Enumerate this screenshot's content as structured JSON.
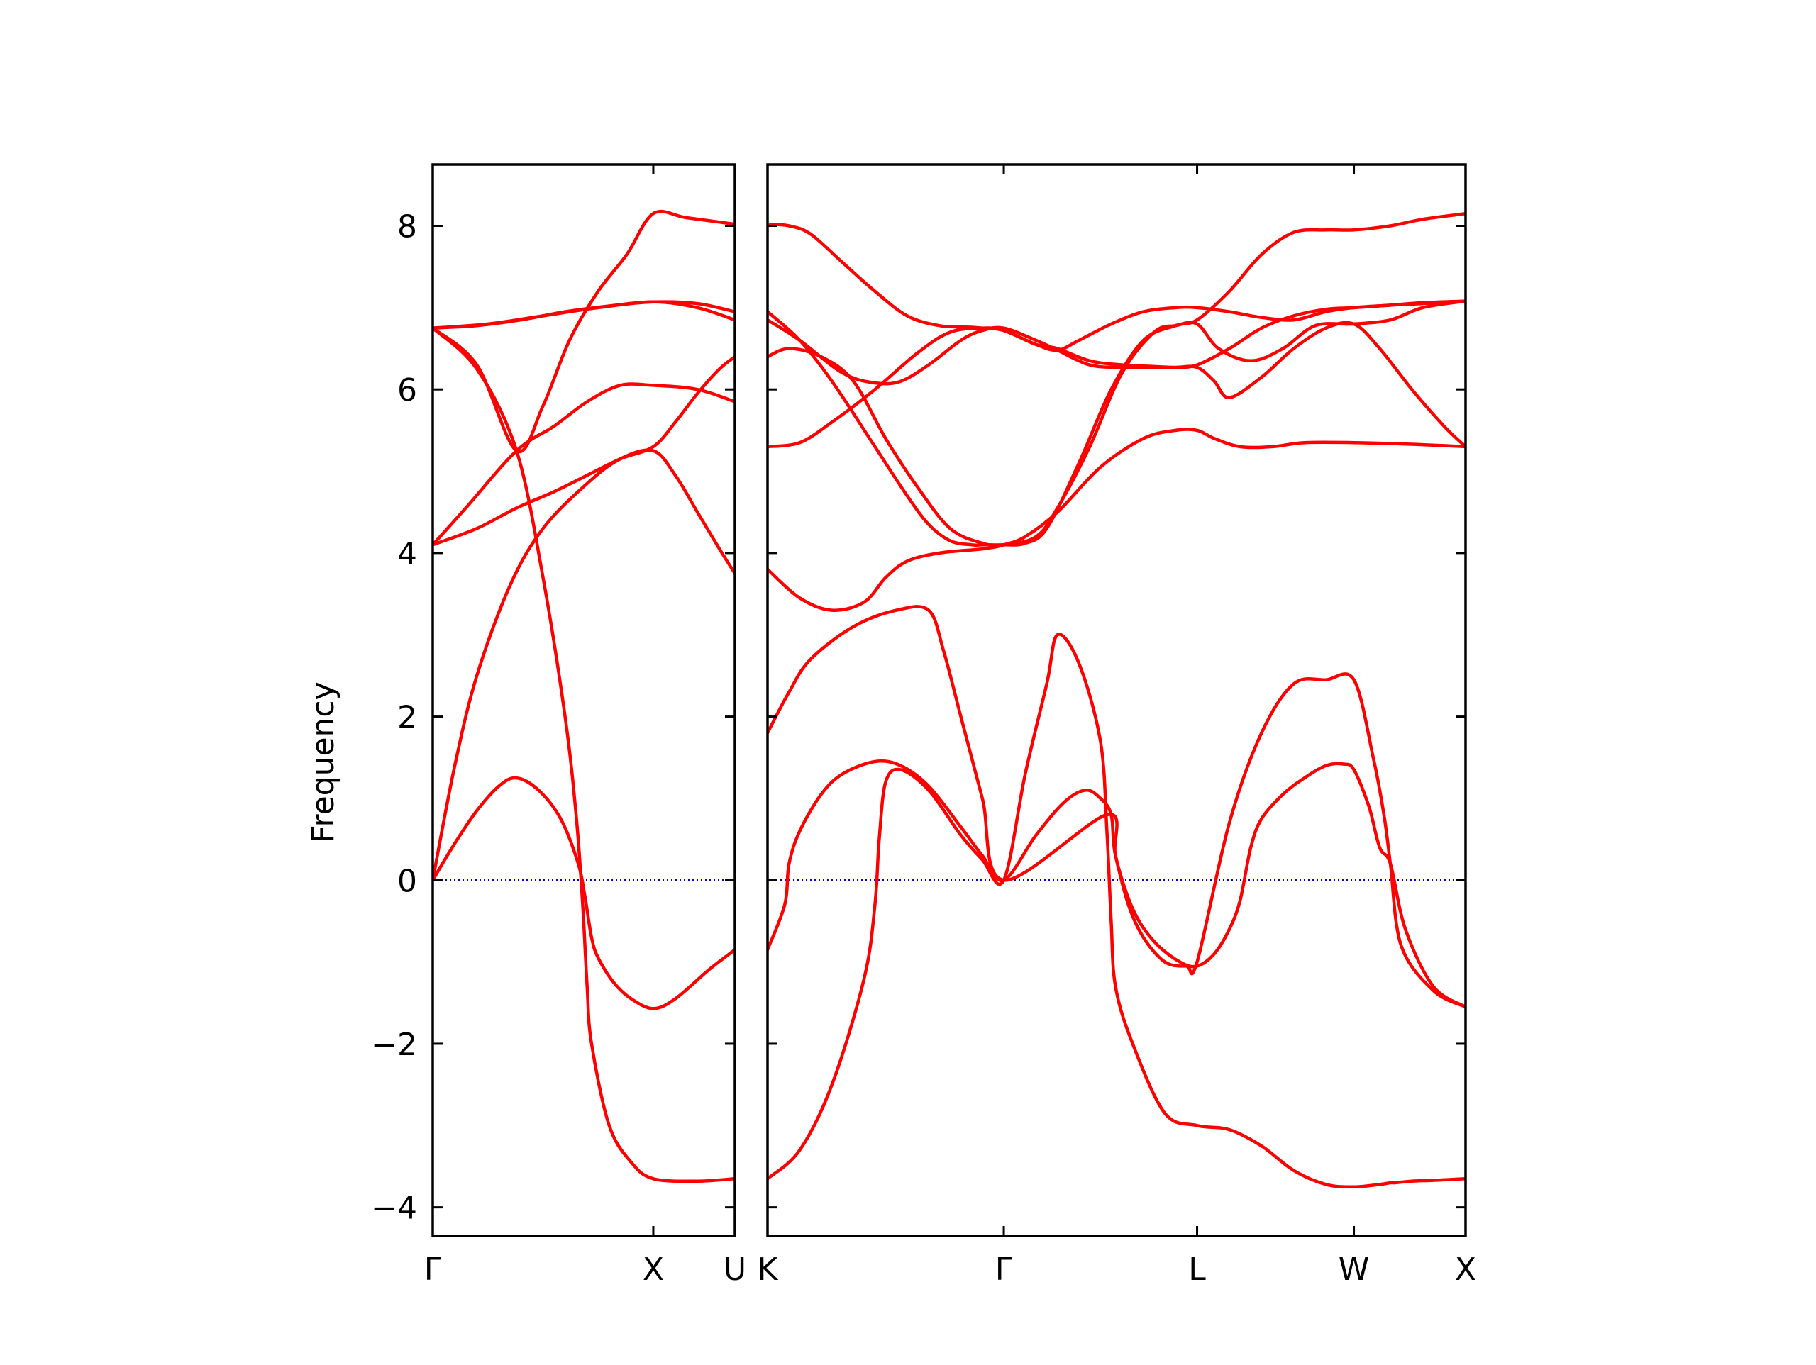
{
  "chart_data": {
    "type": "line",
    "title": "",
    "ylabel": "Frequency",
    "ylim": [
      -4.35,
      8.75
    ],
    "grid": false,
    "legend": "none",
    "colors": {
      "bands": "#ff0000",
      "zero_line": "#0000cc",
      "axes": "#000000"
    },
    "y_ticks": [
      {
        "value": -4,
        "label": "−4"
      },
      {
        "value": -2,
        "label": "−2"
      },
      {
        "value": 0,
        "label": "0"
      },
      {
        "value": 2,
        "label": "2"
      },
      {
        "value": 4,
        "label": "4"
      },
      {
        "value": 6,
        "label": "6"
      },
      {
        "value": 8,
        "label": "8"
      }
    ],
    "panels": [
      {
        "xlim": [
          0,
          1.37
        ],
        "x_ticks": [
          {
            "value": 0,
            "label": "Γ"
          },
          {
            "value": 1.0,
            "label": "X"
          },
          {
            "value": 1.37,
            "label": "U"
          }
        ],
        "series": [
          {
            "x": [
              0,
              0.1,
              0.2,
              0.3,
              0.38,
              0.48,
              0.58,
              0.66,
              0.69,
              0.72,
              0.75,
              0.82,
              0.9,
              1.0,
              1.1,
              1.25,
              1.37
            ],
            "y": [
              0,
              0.45,
              0.85,
              1.15,
              1.25,
              1.1,
              0.75,
              0.2,
              -0.2,
              -0.7,
              -0.95,
              -1.25,
              -1.45,
              -1.57,
              -1.45,
              -1.1,
              -0.85
            ]
          },
          {
            "x": [
              0,
              0.1,
              0.2,
              0.35,
              0.5,
              0.7,
              0.85,
              1.0,
              1.1,
              1.2,
              1.3,
              1.37
            ],
            "y": [
              0,
              1.4,
              2.5,
              3.6,
              4.3,
              4.85,
              5.15,
              5.25,
              4.95,
              4.5,
              4.05,
              3.75
            ]
          },
          {
            "x": [
              0,
              0.2,
              0.38,
              0.55,
              0.7,
              0.85,
              1.0,
              1.1,
              1.2,
              1.3,
              1.37
            ],
            "y": [
              4.1,
              4.3,
              4.55,
              4.75,
              4.95,
              5.15,
              5.3,
              5.6,
              5.95,
              6.25,
              6.4
            ]
          },
          {
            "x": [
              0,
              0.15,
              0.38,
              0.55,
              0.7,
              0.85,
              1.0,
              1.2,
              1.37
            ],
            "y": [
              4.1,
              4.55,
              5.25,
              5.55,
              5.85,
              6.05,
              6.05,
              6.0,
              5.85
            ]
          },
          {
            "x": [
              0,
              0.2,
              0.38,
              0.5,
              0.6,
              0.65,
              0.68,
              0.7,
              0.72,
              0.8,
              0.9,
              1.0,
              1.2,
              1.37
            ],
            "y": [
              6.75,
              6.25,
              5.25,
              3.7,
              2.0,
              0.8,
              -0.3,
              -1.3,
              -2.0,
              -3.0,
              -3.45,
              -3.65,
              -3.68,
              -3.65
            ]
          },
          {
            "x": [
              0,
              0.2,
              0.38,
              0.5,
              0.62,
              0.75,
              0.88,
              1.0,
              1.15,
              1.37
            ],
            "y": [
              6.75,
              6.3,
              5.25,
              5.8,
              6.6,
              7.2,
              7.65,
              8.15,
              8.1,
              8.02
            ]
          },
          {
            "x": [
              0,
              0.2,
              0.4,
              0.6,
              0.8,
              1.0,
              1.2,
              1.37
            ],
            "y": [
              6.75,
              6.78,
              6.85,
              6.95,
              7.02,
              7.07,
              7.05,
              6.95
            ]
          },
          {
            "x": [
              0,
              0.25,
              0.5,
              0.75,
              1.0,
              1.2,
              1.37
            ],
            "y": [
              6.75,
              6.8,
              6.9,
              7.0,
              7.07,
              7.0,
              6.85
            ]
          }
        ]
      },
      {
        "xlim": [
          0,
          3.25
        ],
        "x_ticks": [
          {
            "value": 0,
            "label": "K"
          },
          {
            "value": 1.1,
            "label": "Γ"
          },
          {
            "value": 2.0,
            "label": "L"
          },
          {
            "value": 2.73,
            "label": "W"
          },
          {
            "value": 3.25,
            "label": "X"
          }
        ],
        "series": [
          {
            "x": [
              0,
              0.08,
              0.1,
              0.15,
              0.25,
              0.35,
              0.5,
              0.62,
              0.75,
              0.9,
              1.0,
              1.1,
              1.25,
              1.38,
              1.48,
              1.55,
              1.6,
              1.62,
              1.7,
              1.8,
              1.92,
              2.0,
              2.08,
              2.15,
              2.2,
              2.25,
              2.3,
              2.4,
              2.5,
              2.6,
              2.68,
              2.73,
              2.8,
              2.85,
              2.9,
              2.97,
              3.1,
              3.25
            ],
            "y": [
              -0.85,
              -0.3,
              0.2,
              0.6,
              1.05,
              1.3,
              1.45,
              1.4,
              1.15,
              0.65,
              0.3,
              0,
              0.55,
              0.95,
              1.1,
              1.0,
              0.8,
              0.3,
              -0.35,
              -0.75,
              -1.0,
              -1.05,
              -0.9,
              -0.6,
              -0.25,
              0.4,
              0.75,
              1.05,
              1.25,
              1.4,
              1.42,
              1.35,
              0.9,
              0.4,
              0.2,
              -0.6,
              -1.3,
              -1.55
            ]
          },
          {
            "x": [
              0,
              0.15,
              0.3,
              0.45,
              0.5,
              0.52,
              0.55,
              0.62,
              0.75,
              0.9,
              1.0,
              1.1,
              1.2,
              1.3,
              1.35,
              1.45,
              1.55,
              1.58,
              1.6,
              1.62,
              1.7,
              1.85,
              2.0,
              2.15,
              2.3,
              2.45,
              2.6,
              2.73,
              2.85,
              2.9,
              2.92,
              3.0,
              3.1,
              3.25
            ],
            "y": [
              -3.65,
              -3.3,
              -2.5,
              -1.2,
              -0.3,
              0.5,
              1.2,
              1.35,
              1.1,
              0.55,
              0.25,
              0,
              1.3,
              2.4,
              3.0,
              2.65,
              1.7,
              0.6,
              -0.5,
              -1.3,
              -2.0,
              -2.85,
              -3.0,
              -3.05,
              -3.25,
              -3.55,
              -3.72,
              -3.75,
              -3.72,
              -3.7,
              -3.7,
              -3.68,
              -3.67,
              -3.65
            ]
          },
          {
            "x": [
              0,
              0.1,
              0.2,
              0.4,
              0.6,
              0.75,
              0.82,
              0.9,
              1.0,
              1.1,
              1.58,
              1.62,
              1.68,
              1.75,
              1.85,
              1.95,
              2.0,
              2.15,
              2.3,
              2.45,
              2.6,
              2.73,
              2.82,
              2.87,
              2.9,
              2.95,
              3.1,
              3.25
            ],
            "y": [
              1.8,
              2.3,
              2.7,
              3.1,
              3.3,
              3.3,
              2.8,
              2.0,
              1.0,
              0,
              0.8,
              0.3,
              -0.3,
              -0.7,
              -1.0,
              -1.05,
              -1.0,
              0.7,
              1.8,
              2.4,
              2.45,
              2.45,
              1.5,
              0.8,
              0.2,
              -0.8,
              -1.35,
              -1.55
            ]
          },
          {
            "x": [
              0,
              0.15,
              0.3,
              0.45,
              0.55,
              0.65,
              0.8,
              1.0,
              1.1,
              1.2,
              1.35,
              1.55,
              1.75,
              1.9,
              2.0,
              2.08,
              2.2,
              2.35,
              2.5,
              2.73,
              3.0,
              3.25
            ],
            "y": [
              3.8,
              3.45,
              3.3,
              3.4,
              3.7,
              3.9,
              4.0,
              4.05,
              4.1,
              4.2,
              4.5,
              5.05,
              5.4,
              5.5,
              5.5,
              5.4,
              5.3,
              5.3,
              5.35,
              5.35,
              5.33,
              5.3
            ]
          },
          {
            "x": [
              0,
              0.15,
              0.3,
              0.5,
              0.7,
              0.85,
              1.0,
              1.1,
              1.25,
              1.35,
              1.5,
              1.65,
              1.8,
              1.9,
              2.0,
              2.08,
              2.15,
              2.3,
              2.45,
              2.6,
              2.73,
              2.85,
              3.0,
              3.15,
              3.25
            ],
            "y": [
              5.3,
              5.35,
              5.6,
              6.0,
              6.45,
              6.7,
              6.75,
              6.72,
              6.55,
              6.5,
              6.35,
              6.3,
              6.28,
              6.27,
              6.27,
              6.1,
              5.9,
              6.15,
              6.5,
              6.75,
              6.8,
              6.5,
              6.0,
              5.55,
              5.3
            ]
          },
          {
            "x": [
              0,
              0.1,
              0.25,
              0.4,
              0.55,
              0.7,
              0.85,
              1.0,
              1.1,
              1.25,
              1.35,
              1.5,
              1.65,
              1.8,
              1.9,
              2.0,
              2.1,
              2.25,
              2.4,
              2.55,
              2.73,
              2.9,
              3.05,
              3.25
            ],
            "y": [
              6.4,
              6.5,
              6.4,
              6.1,
              5.4,
              4.8,
              4.3,
              4.12,
              4.1,
              4.2,
              4.55,
              5.3,
              6.2,
              6.7,
              6.78,
              6.8,
              6.5,
              6.35,
              6.5,
              6.78,
              6.8,
              6.85,
              7.0,
              7.08
            ]
          },
          {
            "x": [
              0,
              0.15,
              0.35,
              0.5,
              0.62,
              0.75,
              0.9,
              1.0,
              1.1,
              1.25,
              1.35,
              1.5,
              1.65,
              1.8,
              1.9,
              2.0,
              2.15,
              2.3,
              2.45,
              2.6,
              2.73,
              2.9,
              3.05,
              3.25
            ],
            "y": [
              6.85,
              6.6,
              6.2,
              6.08,
              6.1,
              6.3,
              6.6,
              6.72,
              6.75,
              6.6,
              6.48,
              6.3,
              6.27,
              6.27,
              6.27,
              6.3,
              6.5,
              6.75,
              6.9,
              6.98,
              7.0,
              7.03,
              7.05,
              7.08
            ]
          },
          {
            "x": [
              0,
              0.15,
              0.3,
              0.5,
              0.65,
              0.75,
              0.85,
              0.95,
              1.0,
              1.1,
              1.2,
              1.3,
              1.45,
              1.6,
              1.75,
              1.9,
              2.0,
              2.15,
              2.3,
              2.45,
              2.6,
              2.73,
              2.9,
              3.05,
              3.25
            ],
            "y": [
              6.95,
              6.6,
              6.1,
              5.3,
              4.7,
              4.35,
              4.15,
              4.1,
              4.1,
              4.1,
              4.12,
              4.3,
              5.1,
              6.0,
              6.6,
              6.78,
              6.85,
              7.2,
              7.65,
              7.92,
              7.95,
              7.95,
              8.0,
              8.08,
              8.15
            ]
          },
          {
            "x": [
              0,
              0.1,
              0.2,
              0.35,
              0.5,
              0.65,
              0.8,
              0.95,
              1.0,
              1.1,
              1.25,
              1.35,
              1.45,
              1.6,
              1.75,
              1.9,
              2.0,
              2.15,
              2.3,
              2.45,
              2.6,
              2.73,
              2.9,
              3.05,
              3.25
            ],
            "y": [
              8.02,
              8.0,
              7.9,
              7.55,
              7.2,
              6.9,
              6.78,
              6.76,
              6.75,
              6.72,
              6.55,
              6.48,
              6.6,
              6.8,
              6.95,
              7.0,
              7.0,
              6.95,
              6.88,
              6.85,
              6.95,
              7.0,
              7.03,
              7.06,
              7.08
            ]
          }
        ]
      }
    ]
  }
}
